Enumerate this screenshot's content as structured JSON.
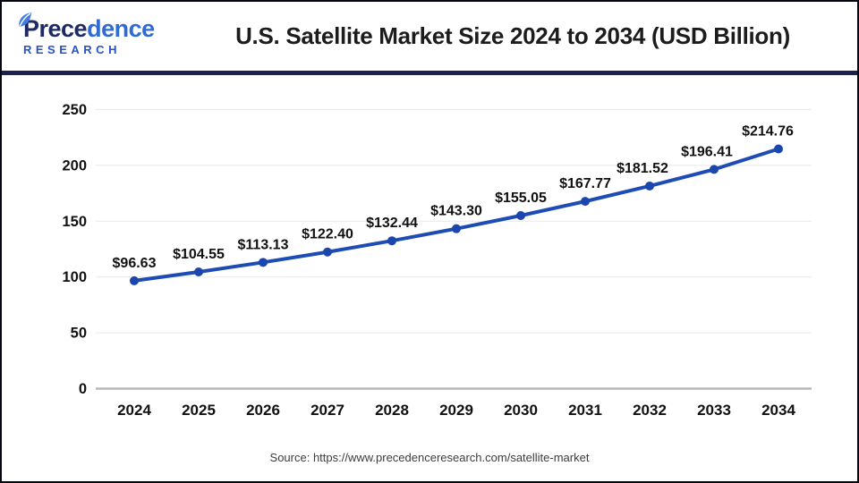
{
  "brand": {
    "name_part1": "Prece",
    "name_part2": "dence",
    "subtitle": "RESEARCH"
  },
  "header": {
    "title": "U.S. Satellite Market Size 2024 to 2034 (USD Billion)"
  },
  "footer": {
    "source": "Source: https://www.precedenceresearch.com/satellite-market"
  },
  "colors": {
    "line": "#1d4cb5",
    "marker": "#1a46ad",
    "grid": "#ececec",
    "zero_axis": "#b9b9b9",
    "tick_text": "#111111",
    "data_label": "#111111",
    "divider_navy": "#1a2153",
    "brand_dark": "#1e2a66",
    "brand_light": "#2f6bd0",
    "research_blue": "#2752c8"
  },
  "chart_data": {
    "type": "line",
    "title": "U.S. Satellite Market Size 2024 to 2034 (USD Billion)",
    "categories": [
      "2024",
      "2025",
      "2026",
      "2027",
      "2028",
      "2029",
      "2030",
      "2031",
      "2032",
      "2033",
      "2034"
    ],
    "series": [
      {
        "name": "U.S. Satellite Market Size (USD Billion)",
        "values": [
          96.63,
          104.55,
          113.13,
          122.4,
          132.44,
          143.3,
          155.05,
          167.77,
          181.52,
          196.41,
          214.76
        ]
      }
    ],
    "value_labels": [
      "$96.63",
      "$104.55",
      "$113.13",
      "$122.40",
      "$132.44",
      "$143.30",
      "$155.05",
      "$167.77",
      "$181.52",
      "$196.41",
      "$214.76"
    ],
    "xlabel": "",
    "ylabel": "",
    "ylim": [
      0,
      250
    ],
    "yticks": [
      0,
      50,
      100,
      150,
      200,
      250
    ],
    "grid": true,
    "legend": false,
    "marker": "circle"
  }
}
